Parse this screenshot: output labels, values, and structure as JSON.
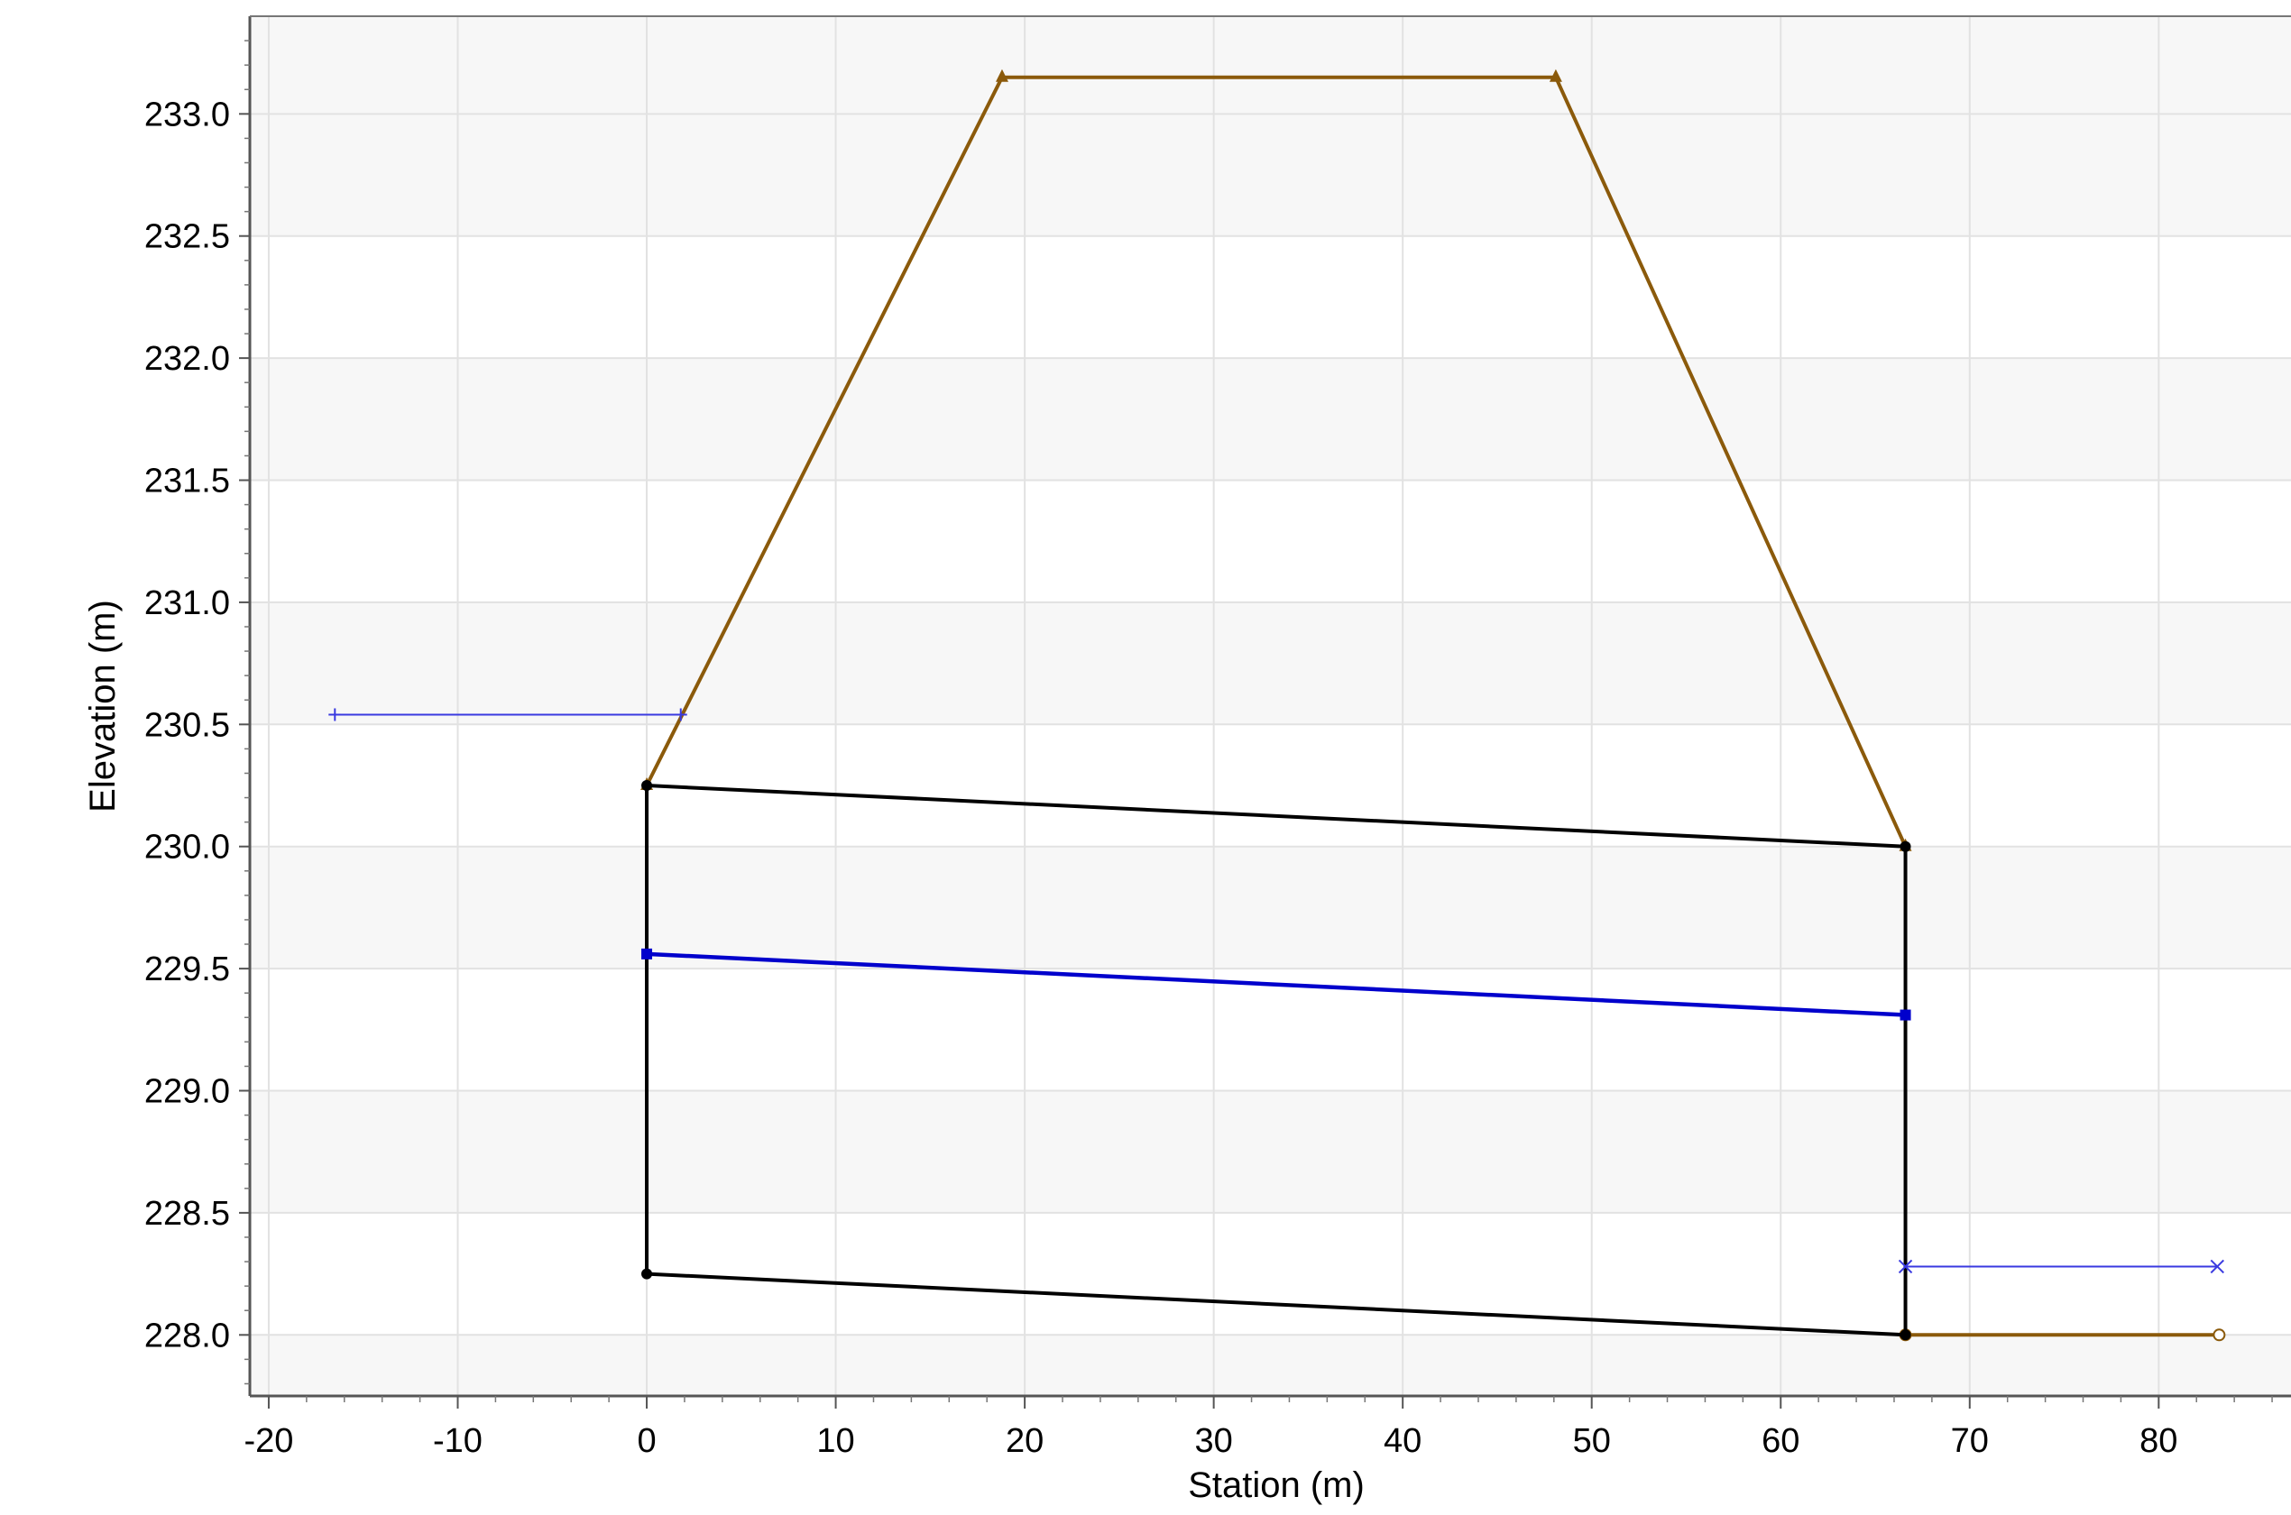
{
  "chart_data": {
    "type": "line",
    "title": "",
    "xlabel": "Station (m)",
    "ylabel": "Elevation (m)",
    "xlim": [
      -21,
      87
    ],
    "ylim": [
      227.75,
      233.4
    ],
    "xticks": [
      -20,
      -10,
      0,
      10,
      20,
      30,
      40,
      50,
      60,
      70,
      80
    ],
    "yticks": [
      228.0,
      228.5,
      229.0,
      229.5,
      230.0,
      230.5,
      231.0,
      231.5,
      232.0,
      232.5,
      233.0
    ],
    "grid": true,
    "legend": "none",
    "series": [
      {
        "role": "embankment",
        "color": "#8B5A0B",
        "marker": "triangle",
        "x": [
          0,
          18.8,
          48.1,
          66.6
        ],
        "y": [
          230.25,
          233.15,
          233.15,
          230.0
        ]
      },
      {
        "role": "tailwater",
        "color": "#8B5A0B",
        "marker": "circle-open",
        "x": [
          66.6,
          83.2
        ],
        "y": [
          228.0,
          228.0
        ]
      },
      {
        "role": "culvert-top",
        "color": "#000000",
        "marker": "dot",
        "x": [
          0,
          66.6
        ],
        "y": [
          230.25,
          230.0
        ]
      },
      {
        "role": "culvert-invert",
        "color": "#000000",
        "marker": "dot",
        "x": [
          0,
          66.6
        ],
        "y": [
          228.25,
          228.0
        ]
      },
      {
        "role": "culvert-inlet-wall",
        "color": "#000000",
        "marker": "none",
        "x": [
          0,
          0
        ],
        "y": [
          228.25,
          230.25
        ]
      },
      {
        "role": "culvert-outlet-wall",
        "color": "#000000",
        "marker": "none",
        "x": [
          66.6,
          66.6
        ],
        "y": [
          228.0,
          230.0
        ]
      },
      {
        "role": "water-surface",
        "color": "#0000CC",
        "marker": "square",
        "x": [
          0,
          66.6
        ],
        "y": [
          229.56,
          229.31
        ]
      },
      {
        "role": "headwater",
        "color": "#3A3AE0",
        "marker": "plus",
        "x": [
          -16.5,
          1.8
        ],
        "y": [
          230.54,
          230.54
        ]
      },
      {
        "role": "tailwater-depth",
        "color": "#3A3AE0",
        "marker": "x",
        "x": [
          66.6,
          83.1
        ],
        "y": [
          228.28,
          228.28
        ]
      }
    ]
  }
}
